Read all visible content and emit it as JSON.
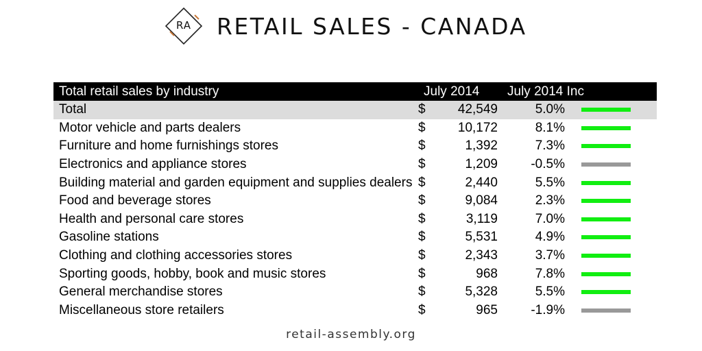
{
  "header": {
    "logo_text": "RA",
    "title": "RETAIL SALES - CANADA"
  },
  "table": {
    "columns": [
      "Total retail sales by industry",
      "July 2014",
      "July 2014 Inc"
    ],
    "currency_symbol": "$",
    "rows": [
      {
        "industry": "Total",
        "value": "42,549",
        "inc": "5.0%",
        "trend": "positive",
        "highlight": true
      },
      {
        "industry": "Motor vehicle and parts dealers",
        "value": "10,172",
        "inc": "8.1%",
        "trend": "positive"
      },
      {
        "industry": "Furniture and home furnishings stores",
        "value": "1,392",
        "inc": "7.3%",
        "trend": "positive"
      },
      {
        "industry": "Electronics and appliance stores",
        "value": "1,209",
        "inc": "-0.5%",
        "trend": "negative"
      },
      {
        "industry": "Building material and garden equipment and supplies dealers",
        "value": "2,440",
        "inc": "5.5%",
        "trend": "positive"
      },
      {
        "industry": "Food and beverage stores",
        "value": "9,084",
        "inc": "2.3%",
        "trend": "positive"
      },
      {
        "industry": "Health and personal care stores",
        "value": "3,119",
        "inc": "7.0%",
        "trend": "positive"
      },
      {
        "industry": "Gasoline stations",
        "value": "5,531",
        "inc": "4.9%",
        "trend": "positive"
      },
      {
        "industry": "Clothing and clothing accessories stores",
        "value": "2,343",
        "inc": "3.7%",
        "trend": "positive"
      },
      {
        "industry": "Sporting goods, hobby, book and music stores",
        "value": "968",
        "inc": "7.8%",
        "trend": "positive"
      },
      {
        "industry": "General merchandise stores",
        "value": "5,328",
        "inc": "5.5%",
        "trend": "positive"
      },
      {
        "industry": "Miscellaneous store retailers",
        "value": "965",
        "inc": "-1.9%",
        "trend": "negative"
      }
    ]
  },
  "colors": {
    "positive": "#11ee11",
    "negative": "#999999",
    "header_bg": "#000000",
    "highlight_bg": "#dcdcdc",
    "logo_accent": "#c8793a"
  },
  "footer": {
    "site": "retail-assembly.org"
  }
}
